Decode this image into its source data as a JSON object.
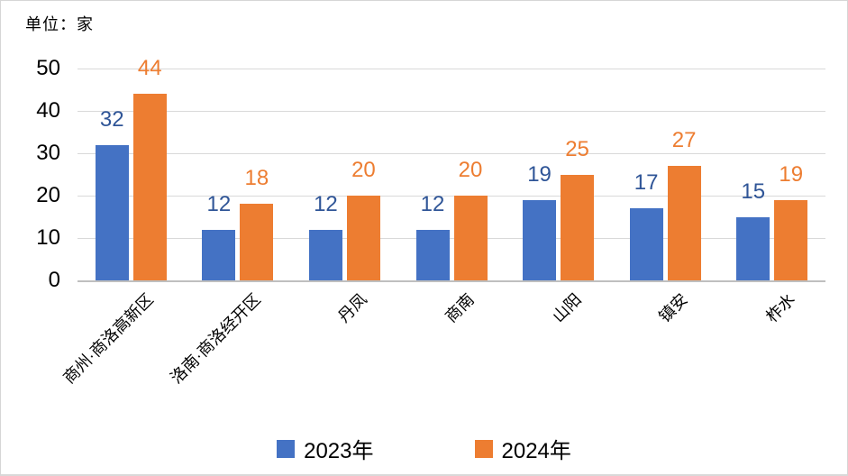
{
  "chart_data": {
    "type": "bar",
    "unit_label": "单位：家",
    "categories": [
      "商州·商洛高新区",
      "洛南·商洛经开区",
      "丹凤",
      "商南",
      "山阳",
      "镇安",
      "柞水"
    ],
    "series": [
      {
        "name": "2023年",
        "color": "#4472C4",
        "label_color": "#2F5597",
        "values": [
          32,
          12,
          12,
          12,
          19,
          17,
          15
        ]
      },
      {
        "name": "2024年",
        "color": "#ED7D31",
        "label_color": "#ED7D31",
        "values": [
          44,
          18,
          20,
          20,
          25,
          27,
          19
        ]
      }
    ],
    "y_axis": {
      "min": 0,
      "max": 50,
      "step": 10,
      "ticks": [
        0,
        10,
        20,
        30,
        40,
        50
      ]
    },
    "grid": true,
    "legend_position": "bottom",
    "gridline_color": "#d9d9d9",
    "baseline_color": "#bfbfbf"
  }
}
